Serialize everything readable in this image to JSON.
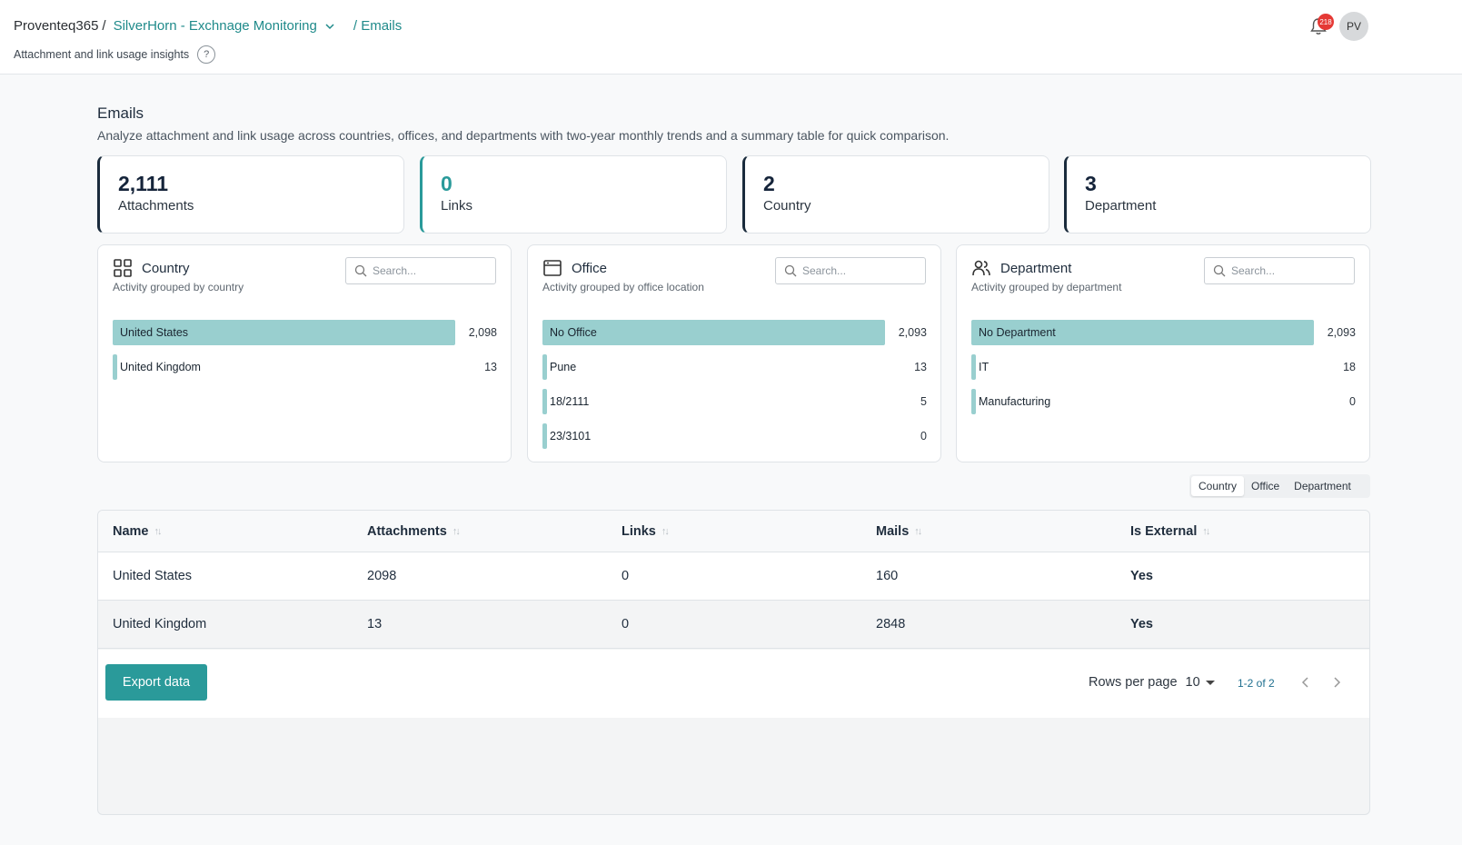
{
  "header": {
    "breadcrumb_root": "Proventeq365",
    "breadcrumb_sep": "/",
    "project": "SilverHorn - Exchnage Monitoring",
    "current": "/ Emails",
    "subtitle": "Attachment and link usage insights",
    "help_glyph": "?",
    "notification_count": "218",
    "avatar_initials": "PV"
  },
  "page": {
    "title": "Emails",
    "description": "Analyze attachment and link usage across countries, offices, and departments with two-year monthly trends and a summary table for quick comparison."
  },
  "stats": [
    {
      "value": "2,111",
      "label": "Attachments"
    },
    {
      "value": "0",
      "label": "Links"
    },
    {
      "value": "2",
      "label": "Country"
    },
    {
      "value": "3",
      "label": "Department"
    }
  ],
  "panels": {
    "country": {
      "title": "Country",
      "subtitle": "Activity grouped by country",
      "search_placeholder": "Search...",
      "icon": "grid-icon",
      "items": [
        {
          "label": "United States",
          "value": "2,098",
          "fraction": 1.0
        },
        {
          "label": "United Kingdom",
          "value": "13",
          "fraction": 0.0062
        }
      ]
    },
    "office": {
      "title": "Office",
      "subtitle": "Activity grouped by office location",
      "search_placeholder": "Search...",
      "icon": "browser-window-icon",
      "items": [
        {
          "label": "No Office",
          "value": "2,093",
          "fraction": 1.0
        },
        {
          "label": "Pune",
          "value": "13",
          "fraction": 0.0062
        },
        {
          "label": "18/2111",
          "value": "5",
          "fraction": 0.0024
        },
        {
          "label": "23/3101",
          "value": "0",
          "fraction": 0
        }
      ]
    },
    "department": {
      "title": "Department",
      "subtitle": "Activity grouped by department",
      "search_placeholder": "Search...",
      "icon": "users-icon",
      "items": [
        {
          "label": "No Department",
          "value": "2,093",
          "fraction": 1.0
        },
        {
          "label": "IT",
          "value": "18",
          "fraction": 0.0086
        },
        {
          "label": "Manufacturing",
          "value": "0",
          "fraction": 0
        }
      ]
    }
  },
  "view_toggle": {
    "options": [
      "Country",
      "Office",
      "Department"
    ],
    "selected": "Country"
  },
  "table": {
    "columns": [
      "Name",
      "Attachments",
      "Links",
      "Mails",
      "Is External"
    ],
    "rows": [
      [
        "United States",
        "2098",
        "0",
        "160",
        "Yes"
      ],
      [
        "United Kingdom",
        "13",
        "0",
        "2848",
        "Yes"
      ]
    ],
    "export_label": "Export data",
    "rows_per_page_label": "Rows per page",
    "rows_per_page": "10",
    "range_label": "1-2 of 2"
  },
  "colors": {
    "accent": "#2a9a9a",
    "bar": "#99cfcf",
    "badge": "#e53935",
    "dark_card_border": "#1a2b3c"
  }
}
